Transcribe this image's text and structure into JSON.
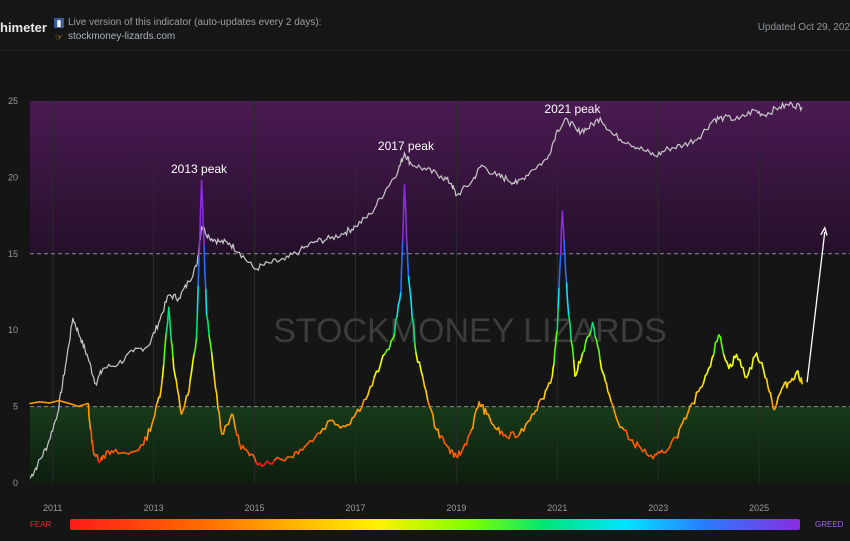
{
  "header": {
    "brand": "himeter",
    "info_line1": "Live version of this indicator (auto-updates every 2 days):",
    "info_link": "stockmoney-lizards.com",
    "updated": "Updated Oct 29, 202",
    "icons": [
      "bar-chart-icon",
      "pointing-hand-icon"
    ]
  },
  "legend": {
    "left": "FEAR",
    "right": "GREED"
  },
  "colors": {
    "zone_top": "#3a1440",
    "zone_bottom": "#0f2a12",
    "price": "#c8c8c8",
    "fear": "#ff1a1a",
    "greed": "#8a2be2"
  },
  "chart_data": {
    "type": "line",
    "title": "",
    "xlabel": "",
    "ylabel": "",
    "watermark": "STOCKMONEY LIZARDS",
    "xlim": [
      2010.55,
      2026.8
    ],
    "ylim": [
      0,
      25
    ],
    "x_ticks": [
      "2011",
      "2013",
      "2015",
      "2017",
      "2019",
      "2021",
      "2023",
      "2025"
    ],
    "y_ticks": [
      "0",
      "5",
      "10",
      "15",
      "20",
      "25"
    ],
    "reference_lines": [
      5,
      15
    ],
    "zones": [
      {
        "from": 15,
        "to": 25,
        "color": "#3a1440"
      },
      {
        "from": 0,
        "to": 5,
        "color": "#0f2a12"
      }
    ],
    "annotations": [
      {
        "text": "2013 peak",
        "x": 2013.9,
        "y": 20.3
      },
      {
        "text": "2017 peak",
        "x": 2018.0,
        "y": 21.8
      },
      {
        "text": "2021 peak",
        "x": 2021.3,
        "y": 24.2
      }
    ],
    "series": [
      {
        "name": "",
        "style": "price",
        "points": [
          [
            2010.55,
            0.3
          ],
          [
            2010.7,
            1.2
          ],
          [
            2010.9,
            2.5
          ],
          [
            2011.1,
            4.6
          ],
          [
            2011.25,
            7.6
          ],
          [
            2011.4,
            10.8
          ],
          [
            2011.55,
            9.5
          ],
          [
            2011.7,
            8.2
          ],
          [
            2011.85,
            6.5
          ],
          [
            2012.0,
            7.5
          ],
          [
            2012.3,
            7.8
          ],
          [
            2012.6,
            8.6
          ],
          [
            2012.9,
            9.0
          ],
          [
            2013.1,
            10.5
          ],
          [
            2013.3,
            12.3
          ],
          [
            2013.5,
            12.1
          ],
          [
            2013.7,
            13.2
          ],
          [
            2013.85,
            14.2
          ],
          [
            2013.95,
            16.8
          ],
          [
            2014.1,
            16.1
          ],
          [
            2014.3,
            15.8
          ],
          [
            2014.5,
            15.7
          ],
          [
            2014.7,
            15.1
          ],
          [
            2015.0,
            14.0
          ],
          [
            2015.3,
            14.4
          ],
          [
            2015.6,
            14.6
          ],
          [
            2015.9,
            15.2
          ],
          [
            2016.2,
            15.8
          ],
          [
            2016.5,
            16.0
          ],
          [
            2016.8,
            16.4
          ],
          [
            2017.0,
            16.8
          ],
          [
            2017.3,
            17.6
          ],
          [
            2017.6,
            19.2
          ],
          [
            2017.85,
            20.5
          ],
          [
            2017.97,
            21.6
          ],
          [
            2018.1,
            20.9
          ],
          [
            2018.4,
            20.5
          ],
          [
            2018.7,
            20.1
          ],
          [
            2018.9,
            19.6
          ],
          [
            2019.0,
            18.8
          ],
          [
            2019.3,
            19.7
          ],
          [
            2019.5,
            20.8
          ],
          [
            2019.8,
            20.1
          ],
          [
            2020.0,
            19.9
          ],
          [
            2020.2,
            19.6
          ],
          [
            2020.5,
            20.5
          ],
          [
            2020.8,
            21.2
          ],
          [
            2021.0,
            23.1
          ],
          [
            2021.2,
            23.8
          ],
          [
            2021.4,
            23.0
          ],
          [
            2021.6,
            23.2
          ],
          [
            2021.85,
            23.9
          ],
          [
            2022.1,
            22.8
          ],
          [
            2022.4,
            22.3
          ],
          [
            2022.7,
            21.8
          ],
          [
            2022.95,
            21.4
          ],
          [
            2023.2,
            21.9
          ],
          [
            2023.5,
            22.1
          ],
          [
            2023.8,
            22.6
          ],
          [
            2024.1,
            23.8
          ],
          [
            2024.3,
            23.9
          ],
          [
            2024.6,
            23.8
          ],
          [
            2024.9,
            24.4
          ],
          [
            2025.1,
            24.1
          ],
          [
            2025.4,
            24.6
          ],
          [
            2025.65,
            24.8
          ],
          [
            2025.85,
            24.6
          ]
        ]
      },
      {
        "name": "",
        "style": "heat",
        "points": [
          [
            2010.55,
            5.2
          ],
          [
            2011.7,
            5.2
          ],
          [
            2011.75,
            3.5
          ],
          [
            2011.8,
            2.2
          ],
          [
            2011.9,
            1.5
          ],
          [
            2012.0,
            1.8
          ],
          [
            2012.2,
            2.0
          ],
          [
            2012.5,
            1.9
          ],
          [
            2012.8,
            2.5
          ],
          [
            2013.0,
            4.2
          ],
          [
            2013.15,
            6.2
          ],
          [
            2013.3,
            11.5
          ],
          [
            2013.4,
            7.5
          ],
          [
            2013.55,
            4.5
          ],
          [
            2013.7,
            6.0
          ],
          [
            2013.85,
            9.5
          ],
          [
            2013.95,
            19.8
          ],
          [
            2014.05,
            11.0
          ],
          [
            2014.2,
            7.0
          ],
          [
            2014.35,
            3.2
          ],
          [
            2014.55,
            4.5
          ],
          [
            2014.7,
            2.6
          ],
          [
            2014.9,
            1.8
          ],
          [
            2015.1,
            1.3
          ],
          [
            2015.4,
            1.5
          ],
          [
            2015.7,
            1.7
          ],
          [
            2015.9,
            2.2
          ],
          [
            2016.2,
            3.0
          ],
          [
            2016.5,
            4.1
          ],
          [
            2016.8,
            3.7
          ],
          [
            2017.0,
            4.5
          ],
          [
            2017.25,
            5.8
          ],
          [
            2017.5,
            7.8
          ],
          [
            2017.75,
            9.5
          ],
          [
            2017.9,
            12.5
          ],
          [
            2017.97,
            19.5
          ],
          [
            2018.05,
            13.5
          ],
          [
            2018.2,
            8.5
          ],
          [
            2018.4,
            6.0
          ],
          [
            2018.6,
            3.5
          ],
          [
            2018.8,
            2.5
          ],
          [
            2018.95,
            1.7
          ],
          [
            2019.1,
            2.0
          ],
          [
            2019.3,
            3.5
          ],
          [
            2019.45,
            5.3
          ],
          [
            2019.6,
            4.5
          ],
          [
            2019.8,
            3.5
          ],
          [
            2020.0,
            3.0
          ],
          [
            2020.25,
            3.2
          ],
          [
            2020.5,
            4.5
          ],
          [
            2020.7,
            5.5
          ],
          [
            2020.9,
            7.0
          ],
          [
            2021.0,
            10.0
          ],
          [
            2021.1,
            17.8
          ],
          [
            2021.2,
            12.0
          ],
          [
            2021.35,
            7.0
          ],
          [
            2021.5,
            8.5
          ],
          [
            2021.7,
            10.5
          ],
          [
            2021.85,
            8.0
          ],
          [
            2022.0,
            6.0
          ],
          [
            2022.2,
            4.0
          ],
          [
            2022.45,
            2.8
          ],
          [
            2022.65,
            2.3
          ],
          [
            2022.9,
            1.6
          ],
          [
            2023.1,
            2.0
          ],
          [
            2023.35,
            3.0
          ],
          [
            2023.55,
            4.2
          ],
          [
            2023.8,
            6.0
          ],
          [
            2024.0,
            7.5
          ],
          [
            2024.2,
            9.7
          ],
          [
            2024.4,
            7.5
          ],
          [
            2024.55,
            8.4
          ],
          [
            2024.75,
            6.9
          ],
          [
            2024.95,
            8.5
          ],
          [
            2025.15,
            6.8
          ],
          [
            2025.3,
            4.8
          ],
          [
            2025.45,
            6.2
          ],
          [
            2025.6,
            6.6
          ],
          [
            2025.75,
            7.3
          ],
          [
            2025.85,
            6.5
          ]
        ]
      }
    ],
    "arrow": {
      "from": [
        2025.95,
        6.6
      ],
      "to": [
        2026.3,
        16.7
      ]
    }
  }
}
